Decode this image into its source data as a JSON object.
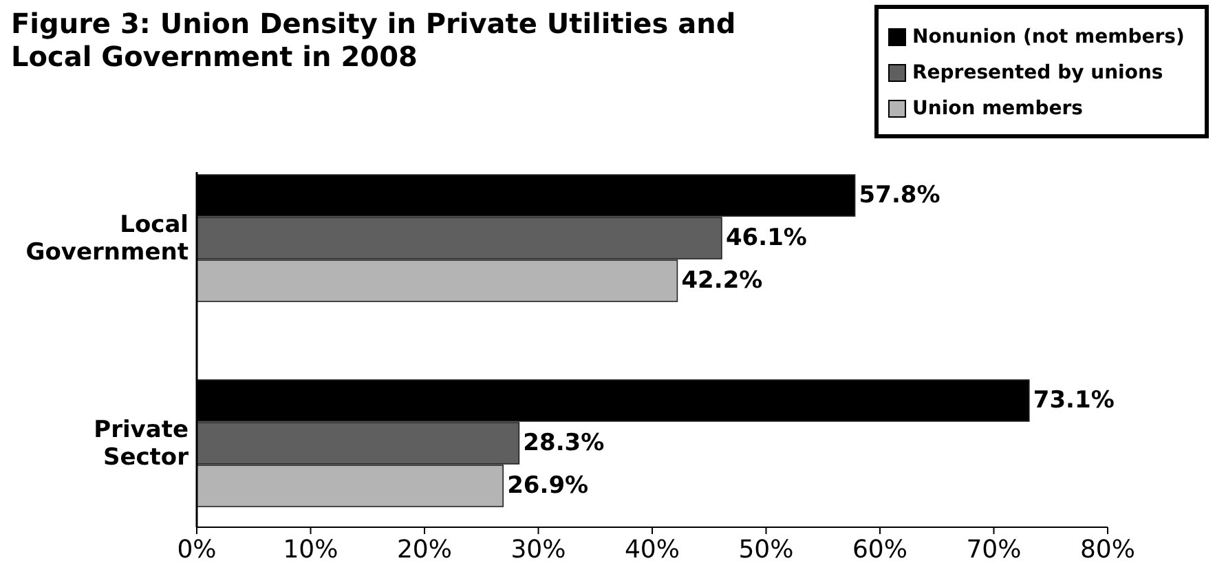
{
  "chart_data": {
    "type": "bar",
    "orientation": "horizontal",
    "title": "Figure 3: Union Density in Private Utilities and Local Government in 2008",
    "categories": [
      "Local Government",
      "Private Sector"
    ],
    "series": [
      {
        "name": "Nonunion (not members)",
        "color": "#000000",
        "values": [
          57.8,
          73.1
        ],
        "value_labels": [
          "57.8%",
          "73.1%"
        ]
      },
      {
        "name": "Represented by unions",
        "color": "#5f5f5f",
        "values": [
          46.1,
          28.3
        ],
        "value_labels": [
          "46.1%",
          "28.3%"
        ]
      },
      {
        "name": "Union members",
        "color": "#b4b4b4",
        "values": [
          42.2,
          26.9
        ],
        "value_labels": [
          "42.2%",
          "26.9%"
        ]
      }
    ],
    "xlim": [
      0,
      80
    ],
    "xticks": [
      {
        "value": 0,
        "label": "0%"
      },
      {
        "value": 10,
        "label": "10%"
      },
      {
        "value": 20,
        "label": "20%"
      },
      {
        "value": 30,
        "label": "30%"
      },
      {
        "value": 40,
        "label": "40%"
      },
      {
        "value": 50,
        "label": "50%"
      },
      {
        "value": 60,
        "label": "60%"
      },
      {
        "value": 70,
        "label": "70%"
      },
      {
        "value": 80,
        "label": "80%"
      }
    ],
    "legend": "top right"
  }
}
